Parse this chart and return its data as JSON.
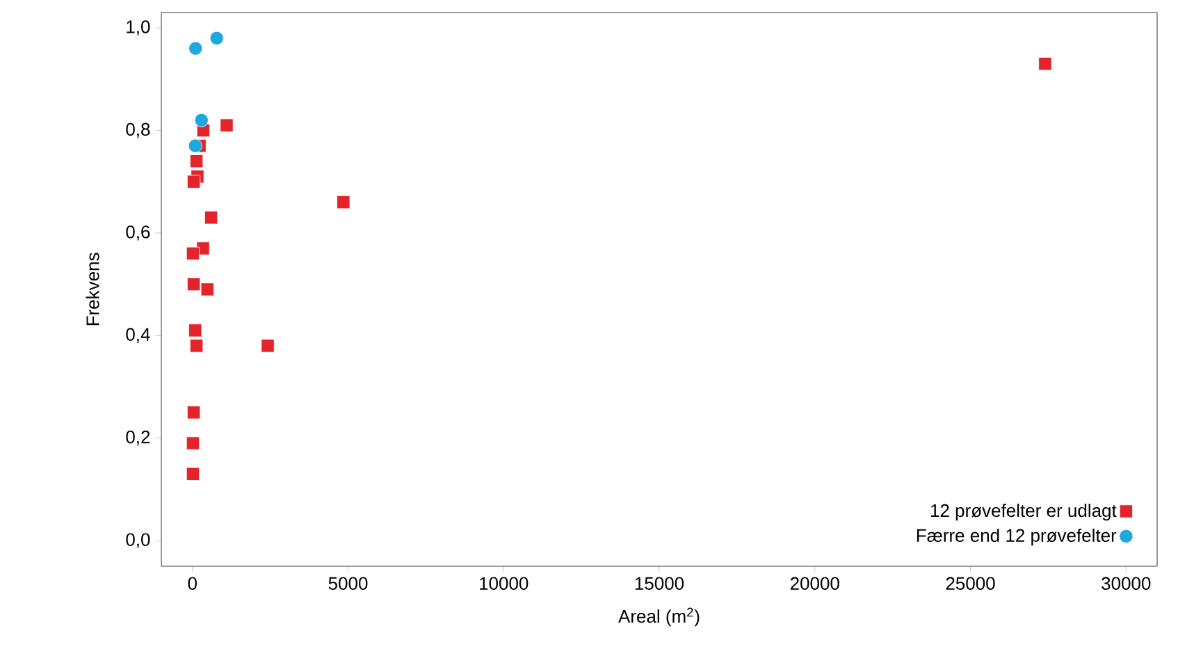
{
  "chart_data": {
    "type": "scatter",
    "xlabel": "Areal (m$^{2}$)",
    "ylabel": "Frekvens",
    "xlim": [
      -1000,
      31000
    ],
    "ylim": [
      -0.05,
      1.03
    ],
    "xticks": [
      0,
      5000,
      10000,
      15000,
      20000,
      25000,
      30000
    ],
    "yticks": [
      {
        "value": 0,
        "label": "0,0"
      },
      {
        "value": 0.2,
        "label": "0,2"
      },
      {
        "value": 0.4,
        "label": "0,4"
      },
      {
        "value": 0.6,
        "label": "0,6"
      },
      {
        "value": 0.8,
        "label": "0,8"
      },
      {
        "value": 1.0,
        "label": "1,0"
      }
    ],
    "legend": "bottom right",
    "series": [
      {
        "name": "12 prøvefelter er udlagt",
        "color": "#e3242b",
        "marker": "square",
        "x": [
          1100,
          350,
          230,
          130,
          160,
          40,
          4850,
          600,
          340,
          15,
          40,
          480,
          90,
          130,
          2420,
          40,
          15,
          15,
          27400
        ],
        "values": [
          0.81,
          0.8,
          0.77,
          0.74,
          0.71,
          0.7,
          0.66,
          0.63,
          0.57,
          0.56,
          0.5,
          0.49,
          0.41,
          0.38,
          0.38,
          0.25,
          0.19,
          0.13,
          0.93
        ]
      },
      {
        "name": "Færre end 12 prøvefelter",
        "color": "#1fa8e0",
        "marker": "circle",
        "x": [
          100,
          780,
          290,
          90
        ],
        "values": [
          0.96,
          0.98,
          0.82,
          0.77
        ]
      }
    ]
  }
}
